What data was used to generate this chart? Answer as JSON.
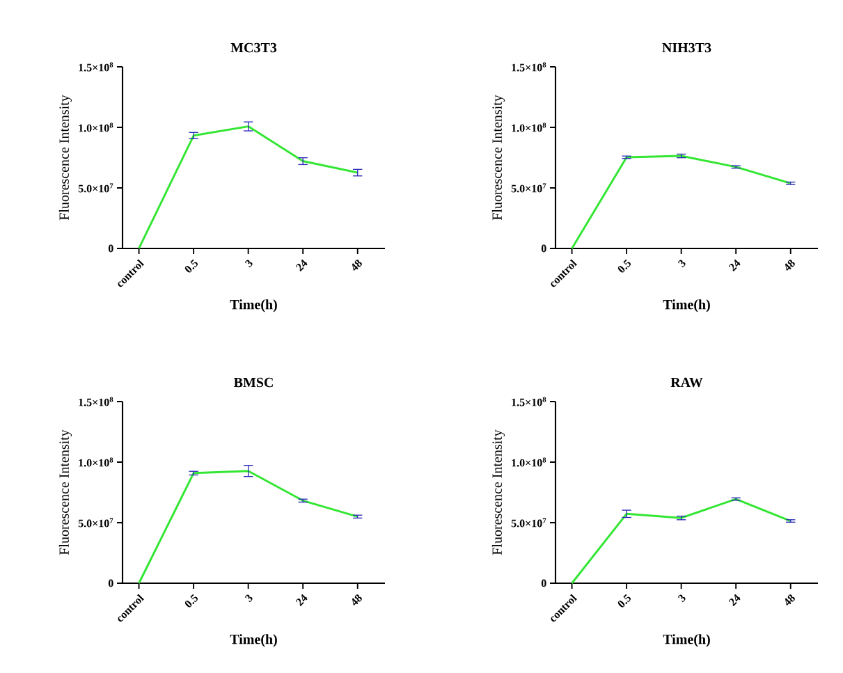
{
  "chart_data": [
    {
      "type": "line",
      "title": "MC3T3",
      "xlabel": "Time(h)",
      "ylabel": "Fluorescence Intensity",
      "categories": [
        "control",
        "0.5",
        "3",
        "24",
        "48"
      ],
      "ylim": [
        0,
        150000000
      ],
      "yticks": [
        0,
        {
          "value": 50000000,
          "label": "5.0×10$^{7}$"
        },
        {
          "value": 100000000,
          "label": "1.0×10$^{8}$"
        },
        {
          "value": 150000000,
          "label": "1.5×10$^{8}$"
        }
      ],
      "series": [
        {
          "color": "#33e633",
          "values": [
            0,
            93200000,
            100800000,
            72100000,
            62600000
          ],
          "errors": [
            null,
            2600000,
            3700000,
            2800000,
            2700000
          ]
        }
      ]
    },
    {
      "type": "line",
      "title": "NIH3T3",
      "xlabel": "Time(h)",
      "ylabel": "Fluorescence Intensity",
      "categories": [
        "control",
        "0.5",
        "3",
        "24",
        "48"
      ],
      "ylim": [
        0,
        150000000
      ],
      "yticks": [
        0,
        {
          "value": 50000000,
          "label": "5.0×10$^{7}$"
        },
        {
          "value": 100000000,
          "label": "1.0×10$^{8}$"
        },
        {
          "value": 150000000,
          "label": "1.5×10$^{8}$"
        }
      ],
      "series": [
        {
          "color": "#33e633",
          "values": [
            0,
            75300000,
            76400000,
            67300000,
            53800000
          ],
          "errors": [
            null,
            1000000,
            1500000,
            1000000,
            1000000
          ]
        }
      ]
    },
    {
      "type": "line",
      "title": "BMSC",
      "xlabel": "Time(h)",
      "ylabel": "Fluorescence Intensity",
      "categories": [
        "control",
        "0.5",
        "3",
        "24",
        "48"
      ],
      "ylim": [
        0,
        150000000
      ],
      "yticks": [
        0,
        {
          "value": 50000000,
          "label": "5.0×10$^{7}$"
        },
        {
          "value": 100000000,
          "label": "1.0×10$^{8}$"
        },
        {
          "value": 150000000,
          "label": "1.5×10$^{8}$"
        }
      ],
      "series": [
        {
          "color": "#33e633",
          "values": [
            0,
            90900000,
            92700000,
            68200000,
            55000000
          ],
          "errors": [
            null,
            1500000,
            4600000,
            1200000,
            1200000
          ]
        }
      ]
    },
    {
      "type": "line",
      "title": "RAW",
      "xlabel": "Time(h)",
      "ylabel": "Fluorescence Intensity",
      "categories": [
        "control",
        "0.5",
        "3",
        "24",
        "48"
      ],
      "ylim": [
        0,
        150000000
      ],
      "yticks": [
        0,
        {
          "value": 50000000,
          "label": "5.0×10$^{7}$"
        },
        {
          "value": 100000000,
          "label": "1.0×10$^{8}$"
        },
        {
          "value": 150000000,
          "label": "1.5×10$^{8}$"
        }
      ],
      "series": [
        {
          "color": "#33e633",
          "values": [
            0,
            57300000,
            53900000,
            69500000,
            51400000
          ],
          "errors": [
            null,
            3000000,
            1500000,
            1000000,
            1000000
          ]
        }
      ]
    }
  ]
}
